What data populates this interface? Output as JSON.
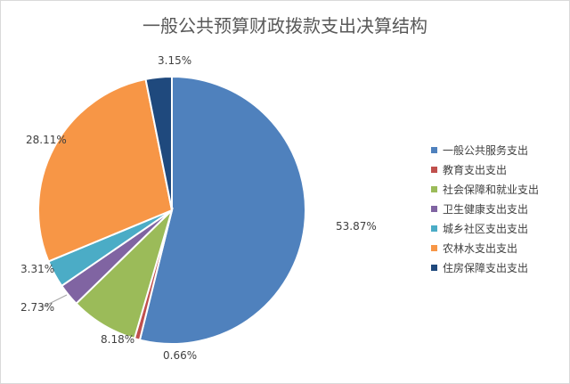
{
  "chart_data": {
    "type": "pie",
    "title": "一般公共预算财政拨款支出决算结构",
    "legend_position": "right",
    "slices": [
      {
        "name": "一般公共服务支出",
        "value": 53.87,
        "label": "53.87%",
        "color": "#4f81bd"
      },
      {
        "name": "教育支出支出",
        "value": 0.66,
        "label": "0.66%",
        "color": "#c0504d"
      },
      {
        "name": "社会保障和就业支出",
        "value": 8.18,
        "label": "8.18%",
        "color": "#9bbb59"
      },
      {
        "name": "卫生健康支出支出",
        "value": 2.73,
        "label": "2.73%",
        "color": "#8064a2"
      },
      {
        "name": "城乡社区支出支出",
        "value": 3.31,
        "label": "3.31%",
        "color": "#4bacc6"
      },
      {
        "name": "农林水支出支出",
        "value": 28.11,
        "label": "28.11%",
        "color": "#f79646"
      },
      {
        "name": "住房保障支出支出",
        "value": 3.15,
        "label": "3.15%",
        "color": "#1f497d"
      }
    ]
  }
}
